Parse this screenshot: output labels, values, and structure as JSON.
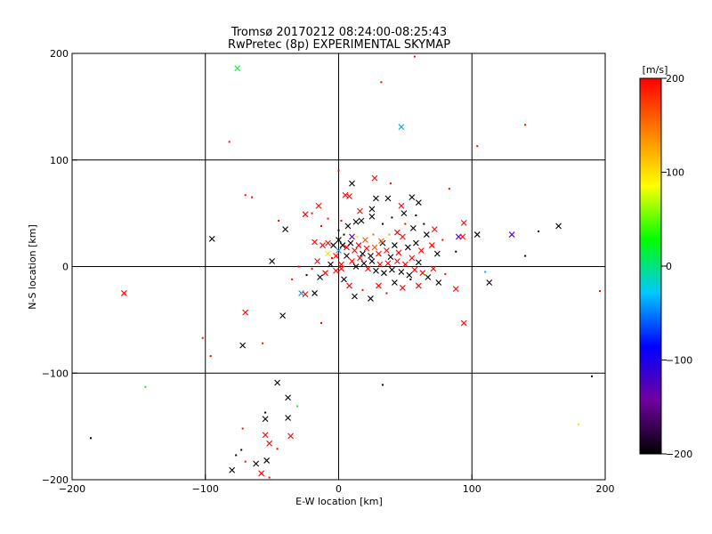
{
  "chart_data": {
    "type": "scatter",
    "title": "Tromsø 20170212 08:24:00-08:25:43",
    "subtitle": "RwPretec (8p) EXPERIMENTAL SKYMAP",
    "xlabel": "E-W location [km]",
    "ylabel": "N-S location [km]",
    "xlim": [
      -200,
      200
    ],
    "ylim": [
      -200,
      200
    ],
    "xticks": [
      -200,
      -100,
      0,
      100,
      200
    ],
    "yticks": [
      -200,
      -100,
      0,
      100,
      200
    ],
    "grid": true,
    "colorbar": {
      "label": "[m/s]",
      "range": [
        -200,
        200
      ],
      "ticks": [
        200,
        100,
        0,
        -100,
        -200
      ],
      "colors": [
        "#000000",
        "#7000a0",
        "#0000ff",
        "#00c8ff",
        "#00ff00",
        "#ffff00",
        "#ff8000",
        "#ff0000"
      ]
    },
    "points": [
      {
        "x": -76,
        "y": 186,
        "v": 20,
        "m": "x"
      },
      {
        "x": 47,
        "y": 131,
        "v": -40,
        "m": "x"
      },
      {
        "x": 57,
        "y": 197,
        "v": 200,
        "m": "d"
      },
      {
        "x": 32,
        "y": 173,
        "v": 200,
        "m": "d"
      },
      {
        "x": -82,
        "y": 117,
        "v": 200,
        "m": "d"
      },
      {
        "x": 140,
        "y": 133,
        "v": 200,
        "m": "d"
      },
      {
        "x": 104,
        "y": 113,
        "v": 200,
        "m": "d"
      },
      {
        "x": -161,
        "y": -25,
        "v": 200,
        "m": "x"
      },
      {
        "x": -95,
        "y": 26,
        "v": -200,
        "m": "x"
      },
      {
        "x": -50,
        "y": 5,
        "v": -200,
        "m": "x"
      },
      {
        "x": -40,
        "y": 35,
        "v": -200,
        "m": "x"
      },
      {
        "x": -70,
        "y": 67,
        "v": 200,
        "m": "d"
      },
      {
        "x": -65,
        "y": 65,
        "v": 200,
        "m": "d"
      },
      {
        "x": -70,
        "y": -43,
        "v": 200,
        "m": "x"
      },
      {
        "x": -42,
        "y": -46,
        "v": -200,
        "m": "x"
      },
      {
        "x": -72,
        "y": -74,
        "v": -200,
        "m": "x"
      },
      {
        "x": -57,
        "y": -72,
        "v": 200,
        "m": "d"
      },
      {
        "x": -102,
        "y": -67,
        "v": 200,
        "m": "d"
      },
      {
        "x": -96,
        "y": -84,
        "v": 200,
        "m": "d"
      },
      {
        "x": -145,
        "y": -113,
        "v": 20,
        "m": "d"
      },
      {
        "x": -186,
        "y": -161,
        "v": -200,
        "m": "d"
      },
      {
        "x": -46,
        "y": -109,
        "v": -200,
        "m": "x"
      },
      {
        "x": -38,
        "y": -123,
        "v": -200,
        "m": "x"
      },
      {
        "x": -31,
        "y": -131,
        "v": 20,
        "m": "d"
      },
      {
        "x": -38,
        "y": -142,
        "v": -200,
        "m": "x"
      },
      {
        "x": -55,
        "y": -143,
        "v": -200,
        "m": "x"
      },
      {
        "x": -55,
        "y": -137,
        "v": -200,
        "m": "d"
      },
      {
        "x": -72,
        "y": -152,
        "v": 200,
        "m": "d"
      },
      {
        "x": -55,
        "y": -158,
        "v": 200,
        "m": "x"
      },
      {
        "x": -36,
        "y": -159,
        "v": 200,
        "m": "x"
      },
      {
        "x": -52,
        "y": -166,
        "v": 200,
        "m": "x"
      },
      {
        "x": -73,
        "y": -172,
        "v": -200,
        "m": "d"
      },
      {
        "x": -46,
        "y": -171,
        "v": 200,
        "m": "d"
      },
      {
        "x": -77,
        "y": -177,
        "v": -200,
        "m": "d"
      },
      {
        "x": -54,
        "y": -182,
        "v": -200,
        "m": "x"
      },
      {
        "x": -62,
        "y": -185,
        "v": -200,
        "m": "x"
      },
      {
        "x": -70,
        "y": -183,
        "v": 200,
        "m": "d"
      },
      {
        "x": -80,
        "y": -191,
        "v": -200,
        "m": "x"
      },
      {
        "x": -58,
        "y": -194,
        "v": 200,
        "m": "x"
      },
      {
        "x": -52,
        "y": -198,
        "v": 200,
        "m": "d"
      },
      {
        "x": 33,
        "y": -111,
        "v": -200,
        "m": "d"
      },
      {
        "x": 94,
        "y": -53,
        "v": 200,
        "m": "x"
      },
      {
        "x": 113,
        "y": -15,
        "v": -200,
        "m": "x"
      },
      {
        "x": 110,
        "y": -5,
        "v": -40,
        "m": "d"
      },
      {
        "x": 196,
        "y": -23,
        "v": 200,
        "m": "d"
      },
      {
        "x": 190,
        "y": -103,
        "v": -200,
        "m": "d"
      },
      {
        "x": 180,
        "y": -148,
        "v": 100,
        "m": "d"
      },
      {
        "x": 90,
        "y": 28,
        "v": -130,
        "m": "x"
      },
      {
        "x": 104,
        "y": 30,
        "v": -200,
        "m": "x"
      },
      {
        "x": 130,
        "y": 30,
        "v": -130,
        "m": "x"
      },
      {
        "x": 150,
        "y": 33,
        "v": -200,
        "m": "d"
      },
      {
        "x": 165,
        "y": 38,
        "v": -200,
        "m": "x"
      },
      {
        "x": 140,
        "y": 10,
        "v": -200,
        "m": "d"
      },
      {
        "x": 88,
        "y": 14,
        "v": -200,
        "m": "d"
      },
      {
        "x": 93,
        "y": 28,
        "v": 200,
        "m": "x"
      },
      {
        "x": 94,
        "y": 41,
        "v": 200,
        "m": "x"
      },
      {
        "x": 83,
        "y": 73,
        "v": 200,
        "m": "d"
      },
      {
        "x": 88,
        "y": -21,
        "v": 200,
        "m": "x"
      },
      {
        "x": -28,
        "y": -25,
        "v": -40,
        "m": "x"
      },
      {
        "x": -25,
        "y": -26,
        "v": 200,
        "m": "x"
      },
      {
        "x": -18,
        "y": -25,
        "v": -200,
        "m": "x"
      },
      {
        "x": -13,
        "y": -53,
        "v": 200,
        "m": "d"
      },
      {
        "x": -5,
        "y": 8,
        "v": 200,
        "m": "d"
      },
      {
        "x": 0,
        "y": 90,
        "v": 200,
        "m": "d"
      },
      {
        "x": 5,
        "y": 67,
        "v": 200,
        "m": "x"
      },
      {
        "x": 8,
        "y": 66,
        "v": 200,
        "m": "x"
      },
      {
        "x": 10,
        "y": 78,
        "v": -200,
        "m": "x"
      },
      {
        "x": 27,
        "y": 83,
        "v": 200,
        "m": "x"
      },
      {
        "x": 39,
        "y": 78,
        "v": 200,
        "m": "d"
      },
      {
        "x": 28,
        "y": 64,
        "v": -200,
        "m": "x"
      },
      {
        "x": 37,
        "y": 64,
        "v": -200,
        "m": "x"
      },
      {
        "x": 55,
        "y": 65,
        "v": -200,
        "m": "x"
      },
      {
        "x": -20,
        "y": 50,
        "v": 200,
        "m": "d"
      },
      {
        "x": -15,
        "y": 57,
        "v": 200,
        "m": "x"
      },
      {
        "x": -25,
        "y": 49,
        "v": 200,
        "m": "x"
      },
      {
        "x": -45,
        "y": 43,
        "v": 200,
        "m": "d"
      },
      {
        "x": -8,
        "y": 45,
        "v": 200,
        "m": "d"
      },
      {
        "x": 16,
        "y": 52,
        "v": 200,
        "m": "x"
      },
      {
        "x": 25,
        "y": 54,
        "v": -200,
        "m": "x"
      },
      {
        "x": 60,
        "y": 60,
        "v": -200,
        "m": "x"
      },
      {
        "x": 47,
        "y": 57,
        "v": 200,
        "m": "x"
      },
      {
        "x": 49,
        "y": 50,
        "v": -200,
        "m": "x"
      },
      {
        "x": 40,
        "y": 46,
        "v": -200,
        "m": "d"
      },
      {
        "x": 33,
        "y": 40,
        "v": -200,
        "m": "d"
      },
      {
        "x": 25,
        "y": 47,
        "v": -200,
        "m": "x"
      },
      {
        "x": 17,
        "y": 43,
        "v": -200,
        "m": "x"
      },
      {
        "x": 13,
        "y": 42,
        "v": -200,
        "m": "x"
      },
      {
        "x": 7,
        "y": 38,
        "v": -200,
        "m": "x"
      },
      {
        "x": 0,
        "y": 34,
        "v": -200,
        "m": "d"
      },
      {
        "x": 2,
        "y": 43,
        "v": 200,
        "m": "d"
      },
      {
        "x": -13,
        "y": 38,
        "v": 200,
        "m": "d"
      },
      {
        "x": -18,
        "y": 23,
        "v": 200,
        "m": "x"
      },
      {
        "x": -12,
        "y": 20,
        "v": 200,
        "m": "x"
      },
      {
        "x": -8,
        "y": 22,
        "v": 200,
        "m": "x"
      },
      {
        "x": -4,
        "y": 20,
        "v": -200,
        "m": "x"
      },
      {
        "x": 0,
        "y": 25,
        "v": -200,
        "m": "x"
      },
      {
        "x": 3,
        "y": 20,
        "v": -200,
        "m": "x"
      },
      {
        "x": 6,
        "y": 18,
        "v": 200,
        "m": "x"
      },
      {
        "x": 9,
        "y": 22,
        "v": -200,
        "m": "x"
      },
      {
        "x": 12,
        "y": 15,
        "v": 200,
        "m": "x"
      },
      {
        "x": 15,
        "y": 20,
        "v": 200,
        "m": "x"
      },
      {
        "x": 18,
        "y": 12,
        "v": -200,
        "m": "x"
      },
      {
        "x": 21,
        "y": 17,
        "v": 200,
        "m": "x"
      },
      {
        "x": 24,
        "y": 10,
        "v": -200,
        "m": "x"
      },
      {
        "x": 27,
        "y": 18,
        "v": 160,
        "m": "x"
      },
      {
        "x": 30,
        "y": 12,
        "v": 200,
        "m": "x"
      },
      {
        "x": 33,
        "y": 22,
        "v": -200,
        "m": "x"
      },
      {
        "x": 36,
        "y": 15,
        "v": 200,
        "m": "x"
      },
      {
        "x": 39,
        "y": 9,
        "v": -200,
        "m": "x"
      },
      {
        "x": 42,
        "y": 20,
        "v": -200,
        "m": "x"
      },
      {
        "x": 45,
        "y": 13,
        "v": 200,
        "m": "x"
      },
      {
        "x": 48,
        "y": 28,
        "v": 200,
        "m": "x"
      },
      {
        "x": 52,
        "y": 18,
        "v": -200,
        "m": "x"
      },
      {
        "x": 55,
        "y": 8,
        "v": 200,
        "m": "x"
      },
      {
        "x": 58,
        "y": 22,
        "v": -200,
        "m": "x"
      },
      {
        "x": 62,
        "y": 15,
        "v": 200,
        "m": "x"
      },
      {
        "x": 66,
        "y": 30,
        "v": -200,
        "m": "x"
      },
      {
        "x": 70,
        "y": 20,
        "v": 200,
        "m": "x"
      },
      {
        "x": 74,
        "y": 12,
        "v": -200,
        "m": "x"
      },
      {
        "x": 78,
        "y": 25,
        "v": 200,
        "m": "d"
      },
      {
        "x": 72,
        "y": 35,
        "v": 200,
        "m": "x"
      },
      {
        "x": 64,
        "y": 40,
        "v": -200,
        "m": "d"
      },
      {
        "x": 56,
        "y": 36,
        "v": -200,
        "m": "x"
      },
      {
        "x": 6,
        "y": 10,
        "v": -200,
        "m": "x"
      },
      {
        "x": 10,
        "y": 5,
        "v": 200,
        "m": "x"
      },
      {
        "x": 13,
        "y": 0,
        "v": -200,
        "m": "x"
      },
      {
        "x": 16,
        "y": 8,
        "v": 200,
        "m": "x"
      },
      {
        "x": 19,
        "y": 3,
        "v": -200,
        "m": "x"
      },
      {
        "x": 22,
        "y": -2,
        "v": 200,
        "m": "x"
      },
      {
        "x": 25,
        "y": 5,
        "v": -200,
        "m": "x"
      },
      {
        "x": 28,
        "y": -4,
        "v": -200,
        "m": "x"
      },
      {
        "x": 31,
        "y": 2,
        "v": 200,
        "m": "x"
      },
      {
        "x": 34,
        "y": -6,
        "v": -200,
        "m": "x"
      },
      {
        "x": 37,
        "y": 3,
        "v": 200,
        "m": "x"
      },
      {
        "x": 40,
        "y": -3,
        "v": -200,
        "m": "x"
      },
      {
        "x": 44,
        "y": 5,
        "v": 200,
        "m": "x"
      },
      {
        "x": 47,
        "y": -5,
        "v": -200,
        "m": "x"
      },
      {
        "x": 50,
        "y": 2,
        "v": 200,
        "m": "x"
      },
      {
        "x": 53,
        "y": -8,
        "v": -200,
        "m": "x"
      },
      {
        "x": 57,
        "y": -3,
        "v": 200,
        "m": "x"
      },
      {
        "x": 60,
        "y": 4,
        "v": -200,
        "m": "x"
      },
      {
        "x": 63,
        "y": -6,
        "v": 200,
        "m": "x"
      },
      {
        "x": 67,
        "y": -10,
        "v": -200,
        "m": "x"
      },
      {
        "x": 71,
        "y": -2,
        "v": 200,
        "m": "x"
      },
      {
        "x": 75,
        "y": -15,
        "v": -200,
        "m": "x"
      },
      {
        "x": 80,
        "y": -7,
        "v": 200,
        "m": "d"
      },
      {
        "x": 2,
        "y": 2,
        "v": 200,
        "m": "x"
      },
      {
        "x": -2,
        "y": -4,
        "v": 200,
        "m": "x"
      },
      {
        "x": -6,
        "y": 2,
        "v": -200,
        "m": "x"
      },
      {
        "x": -10,
        "y": -6,
        "v": 200,
        "m": "x"
      },
      {
        "x": -14,
        "y": -10,
        "v": -200,
        "m": "x"
      },
      {
        "x": -16,
        "y": 5,
        "v": 200,
        "m": "x"
      },
      {
        "x": -20,
        "y": -2,
        "v": 200,
        "m": "d"
      },
      {
        "x": -24,
        "y": -8,
        "v": -200,
        "m": "d"
      },
      {
        "x": -30,
        "y": 0,
        "v": 200,
        "m": "d"
      },
      {
        "x": -35,
        "y": -12,
        "v": 200,
        "m": "d"
      },
      {
        "x": 4,
        "y": -12,
        "v": -200,
        "m": "x"
      },
      {
        "x": 8,
        "y": -18,
        "v": 200,
        "m": "x"
      },
      {
        "x": 12,
        "y": -28,
        "v": -200,
        "m": "x"
      },
      {
        "x": 18,
        "y": -22,
        "v": 200,
        "m": "d"
      },
      {
        "x": 24,
        "y": -30,
        "v": -200,
        "m": "x"
      },
      {
        "x": 30,
        "y": -18,
        "v": 200,
        "m": "x"
      },
      {
        "x": 36,
        "y": -25,
        "v": 200,
        "m": "d"
      },
      {
        "x": 42,
        "y": -15,
        "v": -200,
        "m": "x"
      },
      {
        "x": 48,
        "y": -20,
        "v": 200,
        "m": "x"
      },
      {
        "x": 54,
        "y": -12,
        "v": -200,
        "m": "d"
      },
      {
        "x": 60,
        "y": -18,
        "v": 200,
        "m": "x"
      },
      {
        "x": 65,
        "y": -8,
        "v": 20,
        "m": "d"
      },
      {
        "x": 14,
        "y": 28,
        "v": 100,
        "m": "d"
      },
      {
        "x": 20,
        "y": 25,
        "v": 160,
        "m": "x"
      },
      {
        "x": 26,
        "y": 30,
        "v": 160,
        "m": "d"
      },
      {
        "x": 32,
        "y": 24,
        "v": 160,
        "m": "x"
      },
      {
        "x": -8,
        "y": 12,
        "v": 100,
        "m": "x"
      },
      {
        "x": 38,
        "y": 30,
        "v": 130,
        "m": "d"
      },
      {
        "x": 10,
        "y": 28,
        "v": -130,
        "m": "x"
      },
      {
        "x": 0,
        "y": 15,
        "v": -40,
        "m": "x"
      },
      {
        "x": 44,
        "y": 32,
        "v": 200,
        "m": "x"
      },
      {
        "x": 50,
        "y": 40,
        "v": 200,
        "m": "d"
      },
      {
        "x": 58,
        "y": 48,
        "v": -200,
        "m": "d"
      },
      {
        "x": 4,
        "y": 30,
        "v": -200,
        "m": "d"
      },
      {
        "x": -2,
        "y": 10,
        "v": 200,
        "m": "x"
      },
      {
        "x": 2,
        "y": -2,
        "v": 200,
        "m": "x"
      }
    ]
  }
}
